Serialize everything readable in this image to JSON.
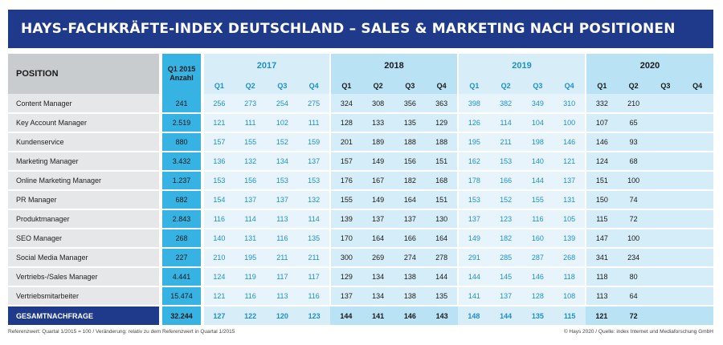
{
  "title": "HAYS-FACHKRÄFTE-INDEX DEUTSCHLAND – SALES & MARKETING NACH POSITIONEN",
  "header": {
    "position": "POSITION",
    "anzahl_line1": "Q1 2015",
    "anzahl_line2": "Anzahl",
    "years": [
      "2017",
      "2018",
      "2019",
      "2020"
    ],
    "quarters": [
      "Q1",
      "Q2",
      "Q3",
      "Q4"
    ]
  },
  "rows": [
    {
      "position": "Content Manager",
      "anzahl": "241",
      "values": [
        "256",
        "273",
        "254",
        "275",
        "324",
        "308",
        "356",
        "363",
        "398",
        "382",
        "349",
        "310",
        "332",
        "210",
        "",
        ""
      ]
    },
    {
      "position": "Key Account Manager",
      "anzahl": "2.519",
      "values": [
        "121",
        "111",
        "102",
        "111",
        "128",
        "133",
        "135",
        "129",
        "126",
        "114",
        "104",
        "100",
        "107",
        "65",
        "",
        ""
      ]
    },
    {
      "position": "Kundenservice",
      "anzahl": "880",
      "values": [
        "157",
        "155",
        "152",
        "159",
        "201",
        "189",
        "188",
        "188",
        "195",
        "211",
        "198",
        "146",
        "146",
        "93",
        "",
        ""
      ]
    },
    {
      "position": "Marketing Manager",
      "anzahl": "3.432",
      "values": [
        "136",
        "132",
        "134",
        "137",
        "157",
        "149",
        "156",
        "151",
        "162",
        "153",
        "140",
        "121",
        "124",
        "68",
        "",
        ""
      ]
    },
    {
      "position": "Online Marketing Manager",
      "anzahl": "1.237",
      "values": [
        "153",
        "156",
        "153",
        "153",
        "176",
        "167",
        "182",
        "168",
        "178",
        "166",
        "144",
        "137",
        "151",
        "100",
        "",
        ""
      ]
    },
    {
      "position": "PR Manager",
      "anzahl": "682",
      "values": [
        "154",
        "137",
        "137",
        "132",
        "155",
        "149",
        "164",
        "151",
        "153",
        "152",
        "155",
        "131",
        "150",
        "74",
        "",
        ""
      ]
    },
    {
      "position": "Produktmanager",
      "anzahl": "2.843",
      "values": [
        "116",
        "114",
        "113",
        "114",
        "139",
        "137",
        "137",
        "130",
        "137",
        "123",
        "116",
        "105",
        "115",
        "72",
        "",
        ""
      ]
    },
    {
      "position": "SEO Manager",
      "anzahl": "268",
      "values": [
        "140",
        "131",
        "116",
        "135",
        "170",
        "164",
        "166",
        "164",
        "149",
        "182",
        "160",
        "139",
        "147",
        "100",
        "",
        ""
      ]
    },
    {
      "position": "Social Media Manager",
      "anzahl": "227",
      "values": [
        "210",
        "195",
        "211",
        "211",
        "300",
        "269",
        "274",
        "278",
        "291",
        "285",
        "287",
        "268",
        "341",
        "234",
        "",
        ""
      ]
    },
    {
      "position": "Vertriebs-/Sales Manager",
      "anzahl": "4.441",
      "values": [
        "124",
        "119",
        "117",
        "117",
        "129",
        "134",
        "138",
        "144",
        "144",
        "145",
        "146",
        "118",
        "118",
        "80",
        "",
        ""
      ]
    },
    {
      "position": "Vertriebsmitarbeiter",
      "anzahl": "15.474",
      "values": [
        "121",
        "116",
        "113",
        "116",
        "137",
        "134",
        "138",
        "135",
        "141",
        "137",
        "128",
        "108",
        "113",
        "64",
        "",
        ""
      ]
    }
  ],
  "total": {
    "position": "GESAMTNACHFRAGE",
    "anzahl": "32.244",
    "values": [
      "127",
      "122",
      "120",
      "123",
      "144",
      "141",
      "146",
      "143",
      "148",
      "144",
      "135",
      "115",
      "121",
      "72",
      "",
      ""
    ]
  },
  "footer": {
    "left": "Referenzwert: Quartal 1/2015 = 100 / Veränderung: relativ zu dem Referenzwert in Quartal 1/2015",
    "right": "© Hays 2020 / Quelle: index Internet und Mediaforschung GmbH"
  },
  "colors": {
    "header_blue": "#1f3a8a",
    "anzahl_blue": "#36b2e3",
    "accent_text": "#1f8fc9"
  }
}
